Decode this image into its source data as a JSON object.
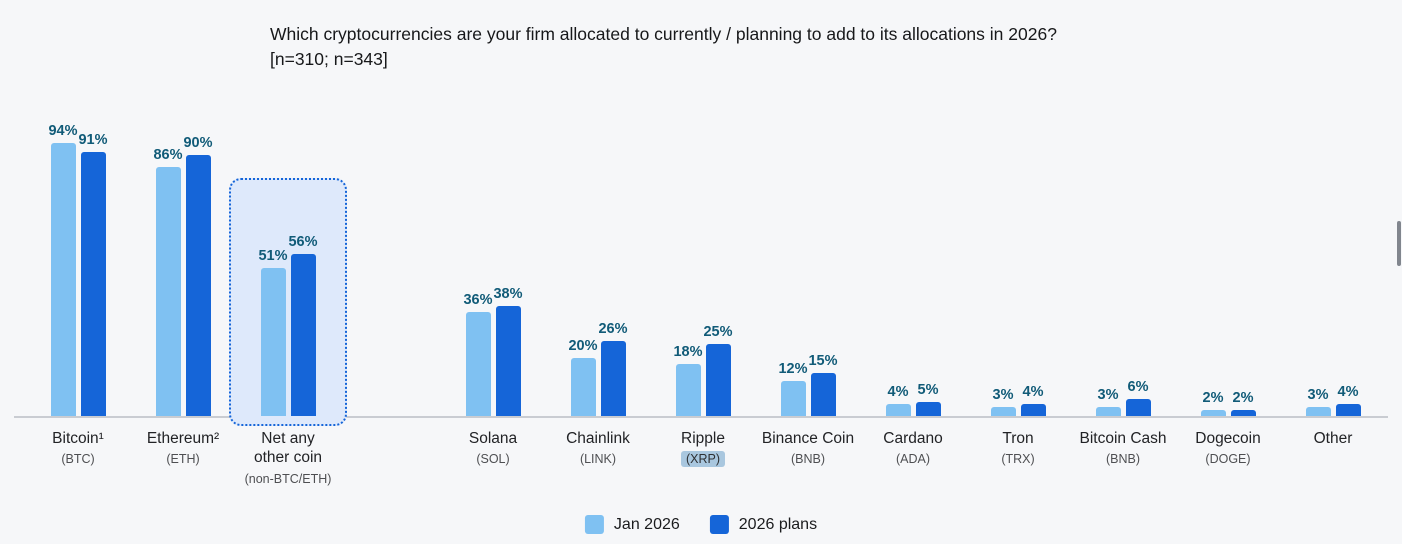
{
  "header": {
    "line1": "Which cryptocurrencies are your firm allocated to currently / planning to add to its allocations in 2026?",
    "line2": "[n=310; n=343]"
  },
  "colors": {
    "series_light": "#7FC1F2",
    "series_dark": "#1565D8",
    "value_label": "#115B78",
    "highlight_box_fill": "#DEE9FB",
    "highlight_box_border": "#1565D8",
    "xrp_highlight": "#A9C7DF"
  },
  "chart_data": {
    "type": "bar",
    "title": "Which cryptocurrencies are your firm allocated to currently / planning to add to its allocations in 2026?",
    "subtitle": "[n=310; n=343]",
    "value_suffix": "%",
    "ylim": [
      0,
      100
    ],
    "grid": false,
    "legend_position": "bottom",
    "categories": [
      {
        "name": "Bitcoin¹",
        "ticker": "(BTC)"
      },
      {
        "name": "Ethereum²",
        "ticker": "(ETH)"
      },
      {
        "name": "Net any other coin",
        "ticker": "(non-BTC/ETH)"
      },
      {
        "name": "Solana",
        "ticker": "(SOL)"
      },
      {
        "name": "Chainlink",
        "ticker": "(LINK)"
      },
      {
        "name": "Ripple",
        "ticker": "(XRP)"
      },
      {
        "name": "Binance Coin",
        "ticker": "(BNB)"
      },
      {
        "name": "Cardano",
        "ticker": "(ADA)"
      },
      {
        "name": "Tron",
        "ticker": "(TRX)"
      },
      {
        "name": "Bitcoin Cash",
        "ticker": "(BNB)"
      },
      {
        "name": "Dogecoin",
        "ticker": "(DOGE)"
      },
      {
        "name": "Other",
        "ticker": ""
      }
    ],
    "series": [
      {
        "name": "Jan 2026",
        "color": "#7FC1F2",
        "values": [
          94,
          86,
          51,
          36,
          20,
          18,
          12,
          4,
          3,
          3,
          2,
          3
        ]
      },
      {
        "name": "2026 plans",
        "color": "#1565D8",
        "values": [
          91,
          90,
          56,
          38,
          26,
          25,
          15,
          5,
          4,
          6,
          2,
          4
        ]
      }
    ],
    "highlighted_category_index": 2,
    "highlighted_ticker_index": 5
  }
}
